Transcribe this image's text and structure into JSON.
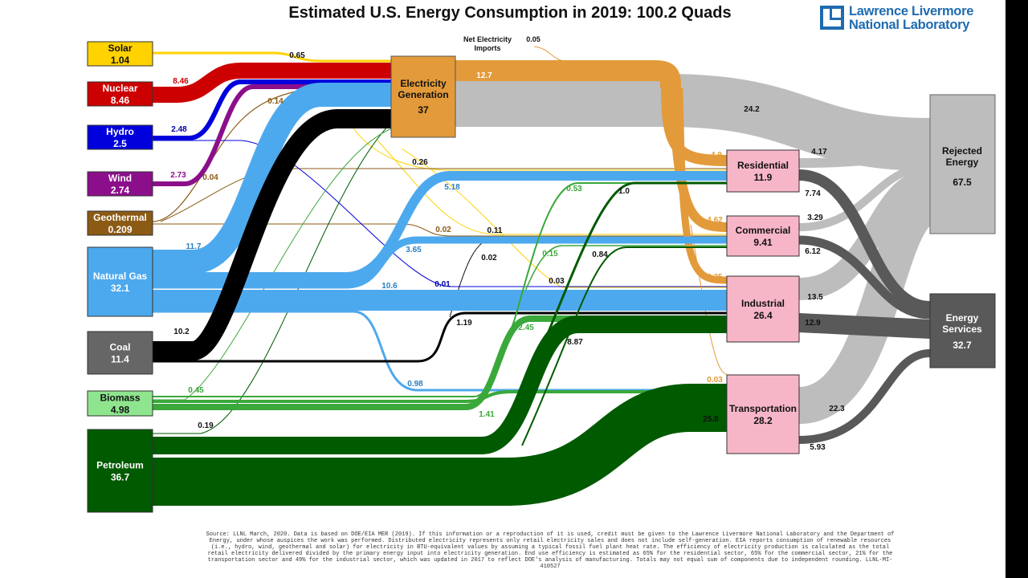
{
  "title": "Estimated U.S. Energy Consumption in 2019: 100.2 Quads",
  "logo": {
    "line1": "Lawrence Livermore",
    "line2": "National Laboratory"
  },
  "sources": [
    {
      "id": "solar",
      "name": "Solar",
      "value": "1.04",
      "color": "#ffd200",
      "text_color": "#111111"
    },
    {
      "id": "nuclear",
      "name": "Nuclear",
      "value": "8.46",
      "color": "#cc0000",
      "text_color": "#ffffff"
    },
    {
      "id": "hydro",
      "name": "Hydro",
      "value": "2.5",
      "color": "#0000dd",
      "text_color": "#ffffff"
    },
    {
      "id": "wind",
      "name": "Wind",
      "value": "2.74",
      "color": "#8b0f8b",
      "text_color": "#ffffff"
    },
    {
      "id": "geothermal",
      "name": "Geothermal",
      "value": "0.209",
      "color": "#8b5a14",
      "text_color": "#ffffff"
    },
    {
      "id": "natural-gas",
      "name": "Natural Gas",
      "value": "32.1",
      "color": "#4da9ee",
      "text_color": "#ffffff"
    },
    {
      "id": "coal",
      "name": "Coal",
      "value": "11.4",
      "color": "#666666",
      "text_color": "#ffffff"
    },
    {
      "id": "biomass",
      "name": "Biomass",
      "value": "4.98",
      "color": "#8ee58e",
      "text_color": "#111111"
    },
    {
      "id": "petroleum",
      "name": "Petroleum",
      "value": "36.7",
      "color": "#005a00",
      "text_color": "#ffffff"
    }
  ],
  "electricity": {
    "name_line1": "Electricity",
    "name_line2": "Generation",
    "value": "37",
    "color": "#e39a3a"
  },
  "imports": {
    "line1": "Net Electricity",
    "line2": "Imports",
    "value": "0.05"
  },
  "sectors": [
    {
      "id": "residential",
      "name": "Residential",
      "value": "11.9"
    },
    {
      "id": "commercial",
      "name": "Commercial",
      "value": "9.41"
    },
    {
      "id": "industrial",
      "name": "Industrial",
      "value": "26.4"
    },
    {
      "id": "transportation",
      "name": "Transportation",
      "value": "28.2"
    }
  ],
  "sector_color": "#f7b6c8",
  "outputs": {
    "rejected": {
      "name_line1": "Rejected",
      "name_line2": "Energy",
      "value": "67.5",
      "color": "#bdbdbd"
    },
    "services": {
      "name_line1": "Energy",
      "name_line2": "Services",
      "value": "32.7",
      "color": "#595959"
    }
  },
  "flow_labels": [
    {
      "id": "solar-elec",
      "text": "0.65",
      "color": "#111111"
    },
    {
      "id": "nuclear-elec",
      "text": "8.46",
      "color": "#cc0000"
    },
    {
      "id": "hydro-elec",
      "text": "2.48",
      "color": "#0000aa"
    },
    {
      "id": "wind-elec",
      "text": "2.73",
      "color": "#8b0f8b"
    },
    {
      "id": "geo-elec",
      "text": "0.14",
      "color": "#8b5a14"
    },
    {
      "id": "geo-res",
      "text": "0.04",
      "color": "#8b5a14"
    },
    {
      "id": "solar-res",
      "text": "0.26",
      "color": "#111111"
    },
    {
      "id": "gas-res",
      "text": "5.18",
      "color": "#2a7fc2"
    },
    {
      "id": "gas-elec",
      "text": "11.7",
      "color": "#2a7fc2"
    },
    {
      "id": "geo-com",
      "text": "0.02",
      "color": "#8b5a14"
    },
    {
      "id": "solar-com",
      "text": "0.11",
      "color": "#111111"
    },
    {
      "id": "gas-com",
      "text": "3.65",
      "color": "#2a7fc2"
    },
    {
      "id": "coal-com",
      "text": "0.02",
      "color": "#111111"
    },
    {
      "id": "hydro-ind",
      "text": "0.01",
      "color": "#0000aa"
    },
    {
      "id": "gas-ind",
      "text": "10.6",
      "color": "#2a7fc2"
    },
    {
      "id": "solar-ind",
      "text": "0.03",
      "color": "#111111"
    },
    {
      "id": "coal-elec",
      "text": "10.2",
      "color": "#111111"
    },
    {
      "id": "coal-ind",
      "text": "1.19",
      "color": "#111111"
    },
    {
      "id": "gas-trans",
      "text": "0.98",
      "color": "#2a7fc2"
    },
    {
      "id": "bio-elec",
      "text": "0.45",
      "color": "#3aa83a"
    },
    {
      "id": "bio-res",
      "text": "0.53",
      "color": "#3aa83a"
    },
    {
      "id": "bio-com",
      "text": "0.15",
      "color": "#3aa83a"
    },
    {
      "id": "bio-ind",
      "text": "2.45",
      "color": "#3aa83a"
    },
    {
      "id": "bio-trans",
      "text": "1.41",
      "color": "#3aa83a"
    },
    {
      "id": "pet-elec",
      "text": "0.19",
      "color": "#111111"
    },
    {
      "id": "pet-res",
      "text": "1.0",
      "color": "#111111"
    },
    {
      "id": "pet-com",
      "text": "0.84",
      "color": "#111111"
    },
    {
      "id": "pet-ind",
      "text": "8.87",
      "color": "#111111"
    },
    {
      "id": "pet-trans",
      "text": "25.8",
      "color": "#111111"
    },
    {
      "id": "elec-direct",
      "text": "12.7",
      "color": "#ffffff"
    },
    {
      "id": "elec-rejected",
      "text": "24.2",
      "color": "#111111"
    },
    {
      "id": "elec-res",
      "text": "4.9",
      "color": "#e39a3a"
    },
    {
      "id": "elec-com",
      "text": "4.62",
      "color": "#e39a3a"
    },
    {
      "id": "elec-ind",
      "text": "3.25",
      "color": "#e39a3a"
    },
    {
      "id": "elec-trans",
      "text": "0.03",
      "color": "#e39a3a"
    },
    {
      "id": "res-rej",
      "text": "4.17",
      "color": "#111111"
    },
    {
      "id": "res-svc",
      "text": "7.74",
      "color": "#111111"
    },
    {
      "id": "com-rej",
      "text": "3.29",
      "color": "#111111"
    },
    {
      "id": "com-svc",
      "text": "6.12",
      "color": "#111111"
    },
    {
      "id": "ind-rej",
      "text": "13.5",
      "color": "#111111"
    },
    {
      "id": "ind-svc",
      "text": "12.9",
      "color": "#111111"
    },
    {
      "id": "trans-rej",
      "text": "22.3",
      "color": "#111111"
    },
    {
      "id": "trans-svc",
      "text": "5.93",
      "color": "#111111"
    }
  ],
  "footer": "Source: LLNL March, 2020. Data is based on DOE/EIA MER (2019). If this information or a reproduction of it is used, credit must be given to the Lawrence Livermore National Laboratory and the Department of Energy, under whose auspices the work was performed. Distributed electricity represents only retail electricity sales and does not include self-generation. EIA reports consumption of renewable resources (i.e., hydro, wind, geothermal and solar) for electricity in BTU-equivalent values by assuming a typical fossil fuel plant heat rate. The efficiency of electricity production is calculated as the total retail electricity delivered divided by the primary energy input into electricity generation. End use efficiency is estimated as 65% for the residential sector, 65% for the commercial sector, 21% for the transportation sector and 49% for the industrial sector, which was updated in 2017 to reflect DOE's analysis of manufacturing. Totals may not equal sum of components due to independent rounding. LLNL-MI-410527"
}
